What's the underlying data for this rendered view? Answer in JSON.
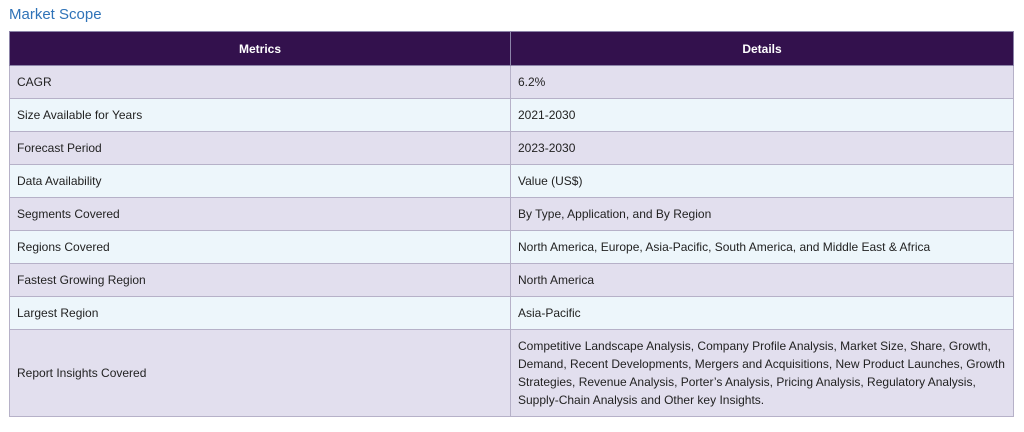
{
  "section": {
    "title": "Market Scope"
  },
  "table": {
    "headers": [
      "Metrics",
      "Details"
    ],
    "rows": [
      {
        "metric": "CAGR",
        "details": "6.2%"
      },
      {
        "metric": "Size Available for Years",
        "details": "2021-2030"
      },
      {
        "metric": "Forecast Period",
        "details": "2023-2030"
      },
      {
        "metric": "Data Availability",
        "details": "Value (US$)"
      },
      {
        "metric": "Segments Covered",
        "details": "By Type, Application, and By Region"
      },
      {
        "metric": "Regions Covered",
        "details": "North America, Europe, Asia-Pacific, South America, and Middle East & Africa"
      },
      {
        "metric": "Fastest Growing Region",
        "details": "North America"
      },
      {
        "metric": "Largest Region",
        "details": "Asia-Pacific"
      },
      {
        "metric": "Report Insights Covered",
        "details": "Competitive Landscape Analysis, Company Profile Analysis, Market Size, Share, Growth, Demand, Recent Developments, Mergers and Acquisitions, New Product Launches, Growth Strategies, Revenue Analysis, Porter’s Analysis, Pricing Analysis, Regulatory Analysis, Supply-Chain Analysis and Other key Insights."
      }
    ]
  },
  "colors": {
    "header_bg": "#33114d",
    "row_odd_bg": "#e2dfee",
    "row_even_bg": "#edf6fb",
    "title": "#2f73b8"
  }
}
